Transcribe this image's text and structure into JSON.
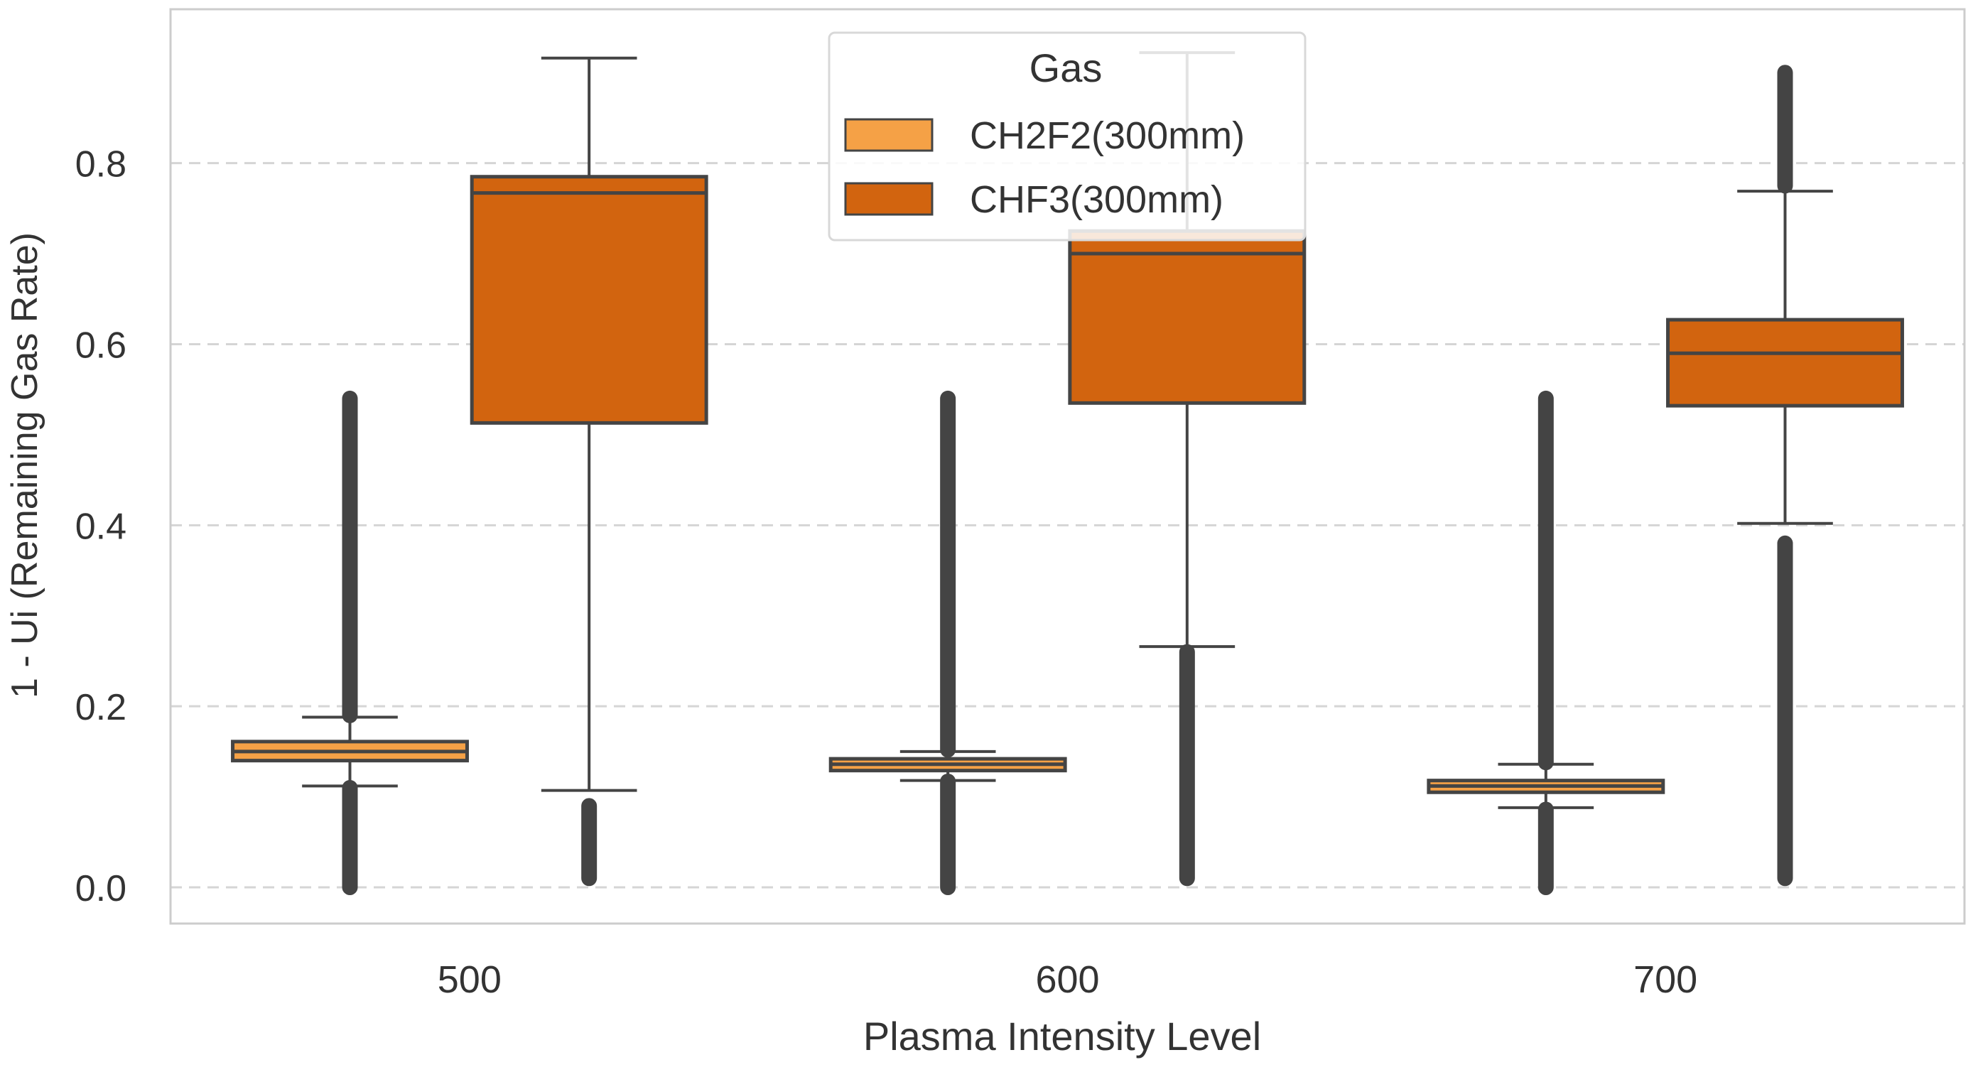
{
  "chart_data": {
    "type": "box",
    "title": "",
    "xlabel": "Plasma Intensity Level",
    "ylabel": "1 - Ui (Remaining Gas Rate)",
    "ylim": [
      -0.04,
      0.97
    ],
    "yticks": [
      0.0,
      0.2,
      0.4,
      0.6,
      0.8
    ],
    "ytick_labels": [
      "0.0",
      "0.2",
      "0.4",
      "0.6",
      "0.8"
    ],
    "categories": [
      "500",
      "600",
      "700"
    ],
    "grid": {
      "y": true,
      "x": false,
      "style": "dashed"
    },
    "legend": {
      "title": "Gas",
      "location": "top-center",
      "entries": [
        "CH2F2(300mm)",
        "CHF3(300mm)"
      ]
    },
    "colors": {
      "CH2F2(300mm)": "#f5a146",
      "CHF3(300mm)": "#d2640f",
      "outline": "#444444",
      "grid": "#d5d5d5",
      "frame": "#cccccc"
    },
    "series": [
      {
        "name": "CH2F2(300mm)",
        "boxes": [
          {
            "category": "500",
            "whisker_low": 0.112,
            "q1": 0.14,
            "median": 0.15,
            "q3": 0.161,
            "whisker_high": 0.188,
            "outliers_low": [
              0.0,
              0.11
            ],
            "outliers_high": [
              0.19,
              0.54
            ]
          },
          {
            "category": "600",
            "whisker_low": 0.118,
            "q1": 0.129,
            "median": 0.136,
            "q3": 0.142,
            "whisker_high": 0.15,
            "outliers_low": [
              0.0,
              0.117
            ],
            "outliers_high": [
              0.152,
              0.54
            ]
          },
          {
            "category": "700",
            "whisker_low": 0.088,
            "q1": 0.105,
            "median": 0.112,
            "q3": 0.118,
            "whisker_high": 0.136,
            "outliers_low": [
              0.0,
              0.086
            ],
            "outliers_high": [
              0.138,
              0.54
            ]
          }
        ]
      },
      {
        "name": "CHF3(300mm)",
        "boxes": [
          {
            "category": "500",
            "whisker_low": 0.107,
            "q1": 0.513,
            "median": 0.767,
            "q3": 0.785,
            "whisker_high": 0.916,
            "outliers_low": [
              0.01,
              0.09
            ],
            "outliers_high": []
          },
          {
            "category": "600",
            "whisker_low": 0.266,
            "q1": 0.535,
            "median": 0.7,
            "q3": 0.725,
            "whisker_high": 0.922,
            "outliers_low": [
              0.01,
              0.26
            ],
            "outliers_high": []
          },
          {
            "category": "700",
            "whisker_low": 0.402,
            "q1": 0.532,
            "median": 0.59,
            "q3": 0.627,
            "whisker_high": 0.769,
            "outliers_low": [
              0.01,
              0.38
            ],
            "outliers_high": [
              0.775,
              0.9
            ]
          }
        ]
      }
    ]
  }
}
